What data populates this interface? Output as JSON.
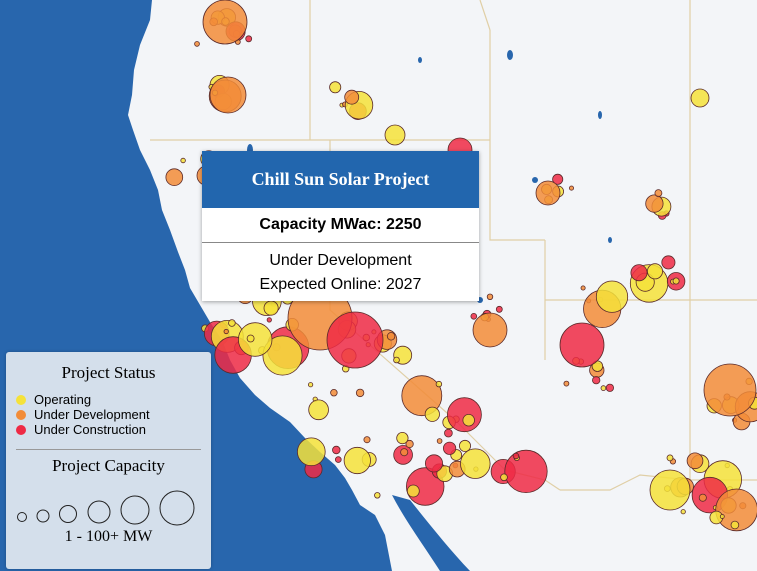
{
  "tooltip": {
    "project_name": "Chill Sun Solar Project",
    "capacity_label": "Capacity MWac: 2250",
    "status": "Under Development",
    "expected_online": "Expected Online: 2027"
  },
  "legend": {
    "status_title": "Project Status",
    "statuses": [
      {
        "label": "Operating",
        "color": "#f5e23a"
      },
      {
        "label": "Under Development",
        "color": "#f28c38"
      },
      {
        "label": "Under Construction",
        "color": "#ee2a45"
      }
    ],
    "capacity_title": "Project Capacity",
    "capacity_range": "1 - 100+ MW"
  },
  "map": {
    "ocean_color": "#2866ad",
    "land_color": "#f3f5f8",
    "border_color": "#e0cfa6"
  }
}
